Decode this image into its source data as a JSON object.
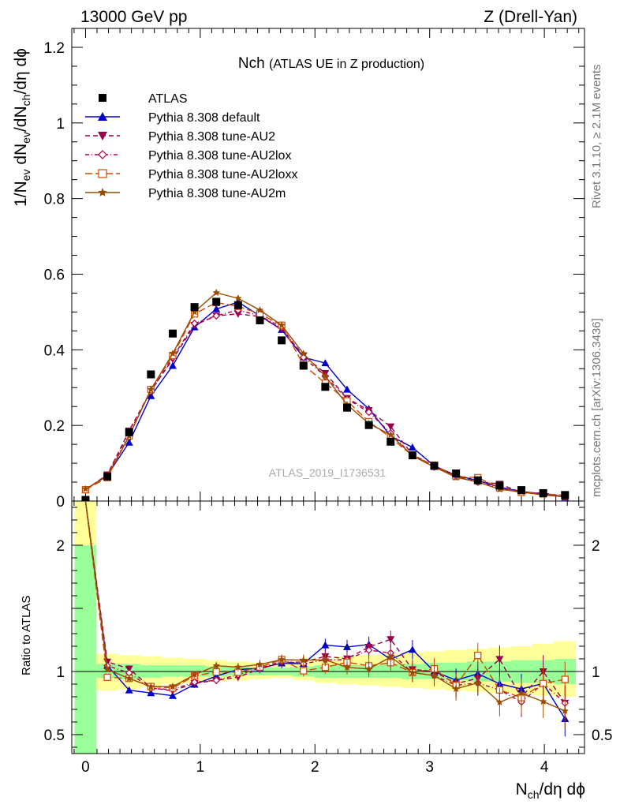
{
  "header": {
    "left": "13000 GeV pp",
    "right": "Z (Drell-Yan)"
  },
  "title": {
    "main": "Nch",
    "sub": "(ATLAS UE in Z production)"
  },
  "side_labels": {
    "rivet": "Rivet 3.1.10, ≥ 2.1M events",
    "mcplots": "mcplots.cern.ch [arXiv:1306.3436]"
  },
  "watermark": "ATLAS_2019_I1736531",
  "axes": {
    "main_ylabel": "1/N_ev dN_ev/dN_ch/dη dϕ",
    "ratio_ylabel": "Ratio to ATLAS",
    "xlabel": "N_ch/dη dϕ"
  },
  "colors": {
    "atlas": "#000000",
    "default": "#0000cc",
    "au2": "#99004c",
    "au2lox": "#b2004c",
    "au2loxx": "#cc4c00",
    "au2m": "#994c00",
    "band_inner": "#99ff99",
    "band_outer": "#ffff99"
  },
  "chart_data": {
    "type": "line",
    "x": [
      0.0,
      0.19,
      0.38,
      0.57,
      0.76,
      0.95,
      1.14,
      1.33,
      1.52,
      1.71,
      1.9,
      2.09,
      2.28,
      2.47,
      2.66,
      2.85,
      3.04,
      3.23,
      3.42,
      3.61,
      3.8,
      3.99,
      4.18
    ],
    "xlim": [
      -0.12,
      4.35
    ],
    "ylim": [
      0,
      1.25
    ],
    "xticks": [
      "0",
      "1",
      "2",
      "3",
      "4"
    ],
    "yticks": [
      "0",
      "0.2",
      "0.4",
      "0.6",
      "0.8",
      "1",
      "1.2"
    ],
    "series": [
      {
        "name": "ATLAS",
        "key": "atlas",
        "style": "marker",
        "values": [
          0.003,
          0.065,
          0.182,
          0.335,
          0.443,
          0.513,
          0.527,
          0.518,
          0.478,
          0.425,
          0.358,
          0.302,
          0.247,
          0.201,
          0.157,
          0.121,
          0.093,
          0.073,
          0.055,
          0.041,
          0.029,
          0.021,
          0.016
        ]
      },
      {
        "name": "Pythia 8.308 default",
        "key": "default",
        "style": "solid",
        "values": [
          0.03,
          0.068,
          0.155,
          0.278,
          0.358,
          0.46,
          0.508,
          0.526,
          0.49,
          0.453,
          0.38,
          0.365,
          0.295,
          0.244,
          0.172,
          0.142,
          0.093,
          0.068,
          0.054,
          0.037,
          0.025,
          0.019,
          0.01
        ]
      },
      {
        "name": "Pythia 8.308 tune-AU2",
        "key": "au2",
        "style": "dashed",
        "values": [
          0.03,
          0.07,
          0.186,
          0.292,
          0.375,
          0.465,
          0.49,
          0.495,
          0.488,
          0.455,
          0.385,
          0.338,
          0.272,
          0.24,
          0.197,
          0.123,
          0.093,
          0.066,
          0.052,
          0.045,
          0.023,
          0.021,
          0.012
        ]
      },
      {
        "name": "Pythia 8.308 tune-AU2lox",
        "key": "au2lox",
        "style": "dashdot",
        "values": [
          0.03,
          0.068,
          0.18,
          0.29,
          0.38,
          0.47,
          0.49,
          0.505,
          0.49,
          0.46,
          0.38,
          0.33,
          0.27,
          0.235,
          0.18,
          0.12,
          0.09,
          0.065,
          0.05,
          0.035,
          0.022,
          0.019,
          0.012
        ]
      },
      {
        "name": "Pythia 8.308 tune-AU2loxx",
        "key": "au2loxx",
        "style": "longdash",
        "values": [
          0.03,
          0.062,
          0.172,
          0.295,
          0.385,
          0.495,
          0.525,
          0.515,
          0.495,
          0.465,
          0.36,
          0.312,
          0.265,
          0.21,
          0.168,
          0.12,
          0.095,
          0.065,
          0.062,
          0.035,
          0.023,
          0.019,
          0.015
        ]
      },
      {
        "name": "Pythia 8.308 tune-AU2m",
        "key": "au2m",
        "style": "solid",
        "values": [
          0.032,
          0.066,
          0.172,
          0.295,
          0.39,
          0.5,
          0.551,
          0.536,
          0.505,
          0.465,
          0.39,
          0.33,
          0.255,
          0.205,
          0.175,
          0.12,
          0.09,
          0.063,
          0.05,
          0.031,
          0.024,
          0.016,
          0.011
        ]
      }
    ],
    "ratio": {
      "ylim": [
        0.35,
        2.35
      ],
      "yticks": [
        "0.5",
        "1",
        "2"
      ],
      "band_inner": [
        [
          0.0,
          2.0
        ],
        [
          0.95,
          1.06
        ],
        [
          0.94,
          1.06
        ],
        [
          0.95,
          1.05
        ],
        [
          0.96,
          1.05
        ],
        [
          0.96,
          1.05
        ],
        [
          0.96,
          1.04
        ],
        [
          0.97,
          1.04
        ],
        [
          0.97,
          1.03
        ],
        [
          0.97,
          1.03
        ],
        [
          0.96,
          1.04
        ],
        [
          0.95,
          1.05
        ],
        [
          0.95,
          1.05
        ],
        [
          0.95,
          1.05
        ],
        [
          0.95,
          1.06
        ],
        [
          0.94,
          1.06
        ],
        [
          0.94,
          1.07
        ],
        [
          0.93,
          1.07
        ],
        [
          0.92,
          1.08
        ],
        [
          0.92,
          1.08
        ],
        [
          0.91,
          1.09
        ],
        [
          0.91,
          1.09
        ],
        [
          0.9,
          1.1
        ]
      ],
      "band_outer": [
        [
          0.0,
          2.4
        ],
        [
          0.85,
          1.14
        ],
        [
          0.86,
          1.13
        ],
        [
          0.88,
          1.12
        ],
        [
          0.9,
          1.11
        ],
        [
          0.91,
          1.1
        ],
        [
          0.92,
          1.09
        ],
        [
          0.93,
          1.08
        ],
        [
          0.94,
          1.07
        ],
        [
          0.95,
          1.06
        ],
        [
          0.93,
          1.08
        ],
        [
          0.91,
          1.1
        ],
        [
          0.9,
          1.12
        ],
        [
          0.89,
          1.13
        ],
        [
          0.88,
          1.14
        ],
        [
          0.87,
          1.15
        ],
        [
          0.86,
          1.16
        ],
        [
          0.85,
          1.17
        ],
        [
          0.84,
          1.18
        ],
        [
          0.83,
          1.19
        ],
        [
          0.82,
          1.2
        ],
        [
          0.81,
          1.22
        ],
        [
          0.8,
          1.24
        ]
      ]
    }
  }
}
